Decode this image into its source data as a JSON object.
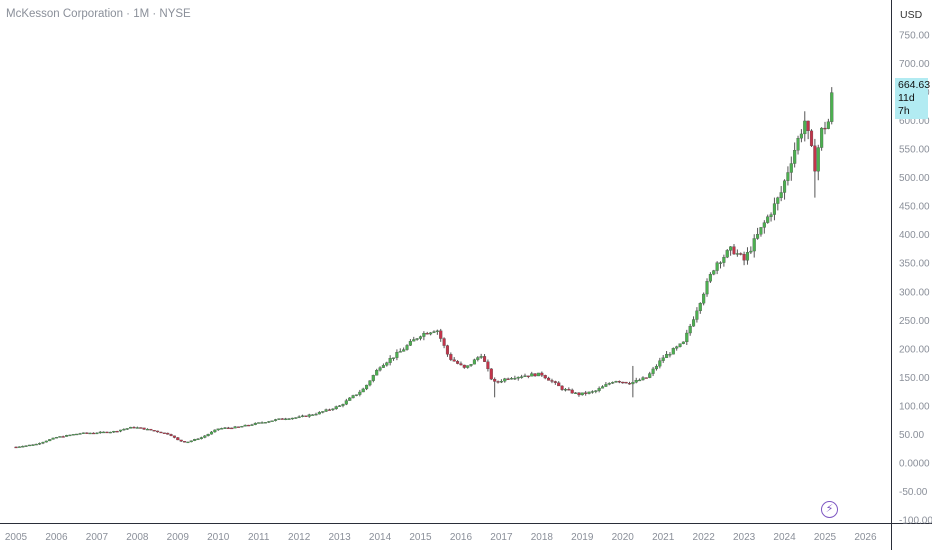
{
  "header": {
    "title": "McKesson Corporation · 1M · NYSE"
  },
  "price_scale": {
    "currency": "USD"
  },
  "last_price": {
    "value": "664.63",
    "countdown": "11d 7h"
  },
  "event_icon": "lightning-icon",
  "colors": {
    "up": "#4caf50",
    "down": "#c2344a",
    "wick": "#555555",
    "tag_bg": "#b2ebf2",
    "icon": "#7e57c2"
  },
  "chart_data": {
    "type": "candlestick",
    "title": "McKesson Corporation · 1M · NYSE",
    "currency": "USD",
    "ylim": [
      -100,
      770
    ],
    "xlim": [
      2004.9,
      2027.0
    ],
    "y_ticks": [
      "750.00",
      "700.00",
      "650.00",
      "600.00",
      "550.00",
      "500.00",
      "450.00",
      "400.00",
      "350.00",
      "300.00",
      "250.00",
      "200.00",
      "150.00",
      "100.00",
      "50.00",
      "0.0000",
      "-50.00",
      "-100.00"
    ],
    "x_ticks": [
      "2005",
      "2006",
      "2007",
      "2008",
      "2009",
      "2010",
      "2011",
      "2012",
      "2013",
      "2014",
      "2015",
      "2016",
      "2017",
      "2018",
      "2019",
      "2020",
      "2021",
      "2022",
      "2023",
      "2024",
      "2025",
      "2026"
    ],
    "price_anchors": [
      [
        2005.0,
        28
      ],
      [
        2005.5,
        33
      ],
      [
        2006.0,
        45
      ],
      [
        2006.6,
        52
      ],
      [
        2007.0,
        53
      ],
      [
        2007.4,
        55
      ],
      [
        2007.9,
        63
      ],
      [
        2008.3,
        58
      ],
      [
        2008.8,
        50
      ],
      [
        2009.0,
        40
      ],
      [
        2009.2,
        36
      ],
      [
        2009.6,
        45
      ],
      [
        2010.0,
        60
      ],
      [
        2010.5,
        63
      ],
      [
        2011.0,
        70
      ],
      [
        2011.6,
        78
      ],
      [
        2012.0,
        80
      ],
      [
        2012.5,
        88
      ],
      [
        2013.0,
        100
      ],
      [
        2013.6,
        130
      ],
      [
        2014.0,
        170
      ],
      [
        2014.5,
        195
      ],
      [
        2015.0,
        225
      ],
      [
        2015.4,
        235
      ],
      [
        2015.7,
        185
      ],
      [
        2016.1,
        165
      ],
      [
        2016.5,
        190
      ],
      [
        2016.8,
        140
      ],
      [
        2017.2,
        150
      ],
      [
        2017.8,
        155
      ],
      [
        2018.0,
        155
      ],
      [
        2018.5,
        130
      ],
      [
        2018.9,
        120
      ],
      [
        2019.3,
        125
      ],
      [
        2019.8,
        145
      ],
      [
        2020.2,
        140
      ],
      [
        2020.6,
        150
      ],
      [
        2021.0,
        185
      ],
      [
        2021.5,
        210
      ],
      [
        2022.0,
        300
      ],
      [
        2022.3,
        350
      ],
      [
        2022.7,
        375
      ],
      [
        2023.0,
        355
      ],
      [
        2023.5,
        420
      ],
      [
        2023.9,
        470
      ],
      [
        2024.2,
        540
      ],
      [
        2024.5,
        600
      ],
      [
        2024.75,
        520
      ],
      [
        2024.9,
        580
      ],
      [
        2025.1,
        600
      ],
      [
        2025.2,
        664.63
      ]
    ]
  }
}
